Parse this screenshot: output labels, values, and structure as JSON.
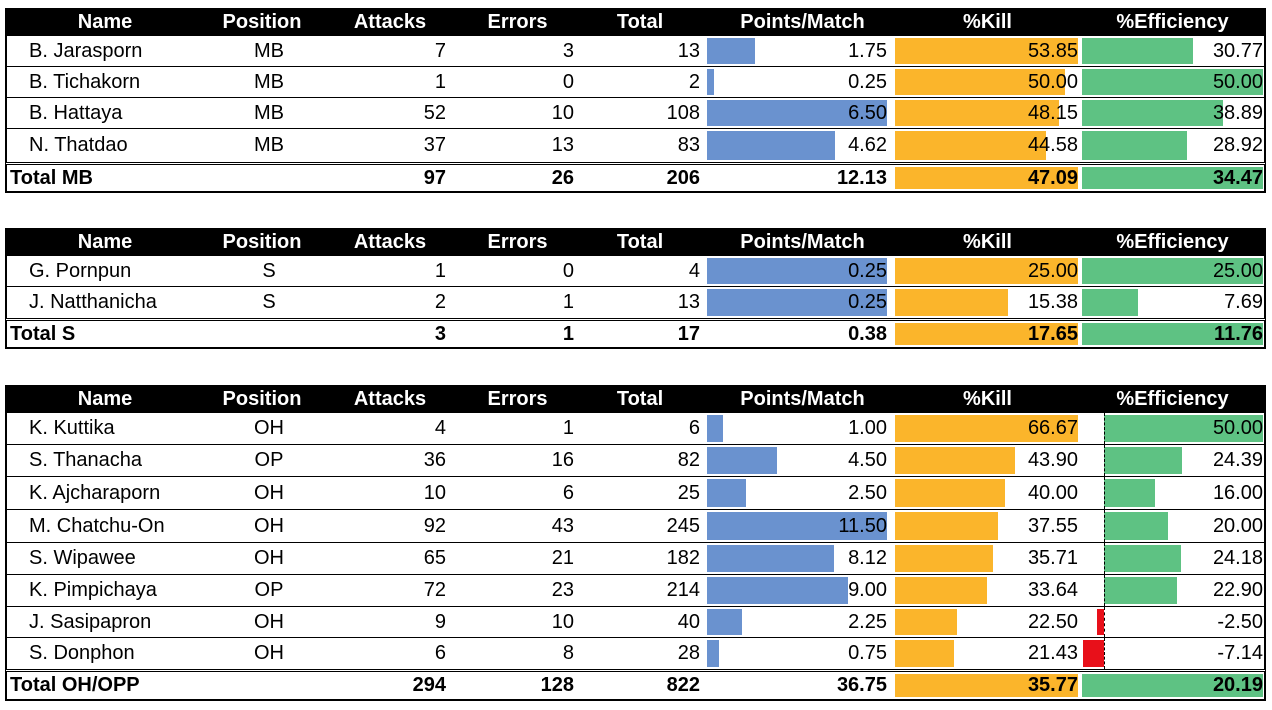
{
  "headers": {
    "name": "Name",
    "position": "Position",
    "attacks": "Attacks",
    "errors": "Errors",
    "total": "Total",
    "points_per_match": "Points/Match",
    "kill": "%Kill",
    "efficiency": "%Efficiency"
  },
  "colors": {
    "header_bg": "#000000",
    "points_bar": "#6a92cf",
    "kill_bar": "#fbb52b",
    "efficiency_bar": "#5ec283",
    "negative_bar": "#e8101a"
  },
  "tables": [
    {
      "rows": [
        {
          "name": "B. Jarasporn",
          "position": "MB",
          "attacks": "7",
          "errors": "3",
          "total": "13",
          "ppm": "1.75",
          "kill": "53.85",
          "eff": "30.77"
        },
        {
          "name": "B. Tichakorn",
          "position": "MB",
          "attacks": "1",
          "errors": "0",
          "total": "2",
          "ppm": "0.25",
          "kill": "50.00",
          "eff": "50.00"
        },
        {
          "name": "B. Hattaya",
          "position": "MB",
          "attacks": "52",
          "errors": "10",
          "total": "108",
          "ppm": "6.50",
          "kill": "48.15",
          "eff": "38.89"
        },
        {
          "name": "N. Thatdao",
          "position": "MB",
          "attacks": "37",
          "errors": "13",
          "total": "83",
          "ppm": "4.62",
          "kill": "44.58",
          "eff": "28.92"
        }
      ],
      "total": {
        "name": "Total MB",
        "attacks": "97",
        "errors": "26",
        "total": "206",
        "ppm": "12.13",
        "kill": "47.09",
        "eff": "34.47"
      }
    },
    {
      "rows": [
        {
          "name": "G. Pornpun",
          "position": "S",
          "attacks": "1",
          "errors": "0",
          "total": "4",
          "ppm": "0.25",
          "kill": "25.00",
          "eff": "25.00"
        },
        {
          "name": "J. Natthanicha",
          "position": "S",
          "attacks": "2",
          "errors": "1",
          "total": "13",
          "ppm": "0.25",
          "kill": "15.38",
          "eff": "7.69"
        }
      ],
      "total": {
        "name": "Total S",
        "attacks": "3",
        "errors": "1",
        "total": "17",
        "ppm": "0.38",
        "kill": "17.65",
        "eff": "11.76"
      }
    },
    {
      "rows": [
        {
          "name": "K. Kuttika",
          "position": "OH",
          "attacks": "4",
          "errors": "1",
          "total": "6",
          "ppm": "1.00",
          "kill": "66.67",
          "eff": "50.00"
        },
        {
          "name": "S. Thanacha",
          "position": "OP",
          "attacks": "36",
          "errors": "16",
          "total": "82",
          "ppm": "4.50",
          "kill": "43.90",
          "eff": "24.39"
        },
        {
          "name": "K. Ajcharaporn",
          "position": "OH",
          "attacks": "10",
          "errors": "6",
          "total": "25",
          "ppm": "2.50",
          "kill": "40.00",
          "eff": "16.00"
        },
        {
          "name": "M. Chatchu-On",
          "position": "OH",
          "attacks": "92",
          "errors": "43",
          "total": "245",
          "ppm": "11.50",
          "kill": "37.55",
          "eff": "20.00"
        },
        {
          "name": "S. Wipawee",
          "position": "OH",
          "attacks": "65",
          "errors": "21",
          "total": "182",
          "ppm": "8.12",
          "kill": "35.71",
          "eff": "24.18"
        },
        {
          "name": "K. Pimpichaya",
          "position": "OP",
          "attacks": "72",
          "errors": "23",
          "total": "214",
          "ppm": "9.00",
          "kill": "33.64",
          "eff": "22.90"
        },
        {
          "name": "J. Sasipapron",
          "position": "OH",
          "attacks": "9",
          "errors": "10",
          "total": "40",
          "ppm": "2.25",
          "kill": "22.50",
          "eff": "-2.50"
        },
        {
          "name": "S. Donphon",
          "position": "OH",
          "attacks": "6",
          "errors": "8",
          "total": "28",
          "ppm": "0.75",
          "kill": "21.43",
          "eff": "-7.14"
        }
      ],
      "total": {
        "name": "Total OH/OPP",
        "attacks": "294",
        "errors": "128",
        "total": "822",
        "ppm": "36.75",
        "kill": "35.77",
        "eff": "20.19"
      }
    }
  ]
}
